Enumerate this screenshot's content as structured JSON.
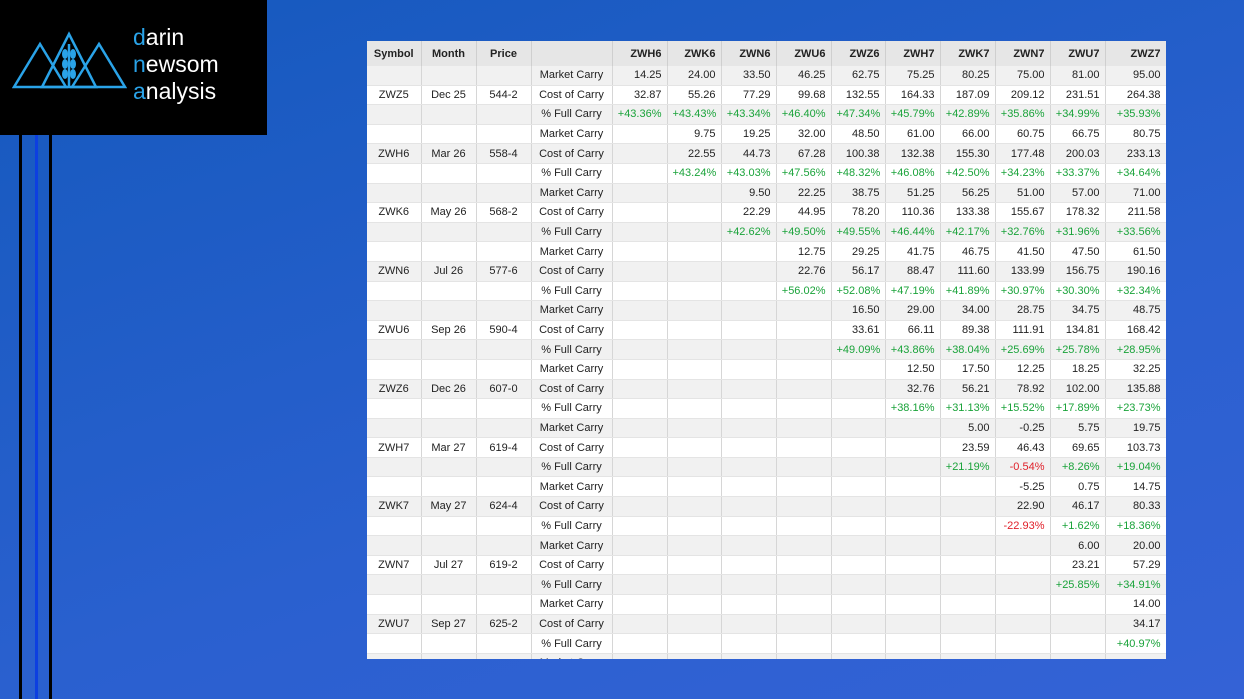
{
  "logo": {
    "lines": [
      "darin",
      "newsom",
      "analysis"
    ]
  },
  "table": {
    "header": [
      "Symbol",
      "Month",
      "Price",
      null,
      "ZWH6",
      "ZWK6",
      "ZWN6",
      "ZWU6",
      "ZWZ6",
      "ZWH7",
      "ZWK7",
      "ZWN7",
      "ZWU7",
      "ZWZ7"
    ],
    "groups": [
      {
        "symbol": "ZWZ5",
        "month": "Dec 25",
        "price": "544-2",
        "rows": [
          {
            "label": "Market Carry",
            "values": [
              "14.25",
              "24.00",
              "33.50",
              "46.25",
              "62.75",
              "75.25",
              "80.25",
              "75.00",
              "81.00",
              "95.00"
            ]
          },
          {
            "label": "Cost of Carry",
            "values": [
              "32.87",
              "55.26",
              "77.29",
              "99.68",
              "132.55",
              "164.33",
              "187.09",
              "209.12",
              "231.51",
              "264.38"
            ]
          },
          {
            "label": "% Full Carry",
            "values": [
              "+43.36%",
              "+43.43%",
              "+43.34%",
              "+46.40%",
              "+47.34%",
              "+45.79%",
              "+42.89%",
              "+35.86%",
              "+34.99%",
              "+35.93%"
            ]
          }
        ]
      },
      {
        "symbol": "ZWH6",
        "month": "Mar 26",
        "price": "558-4",
        "rows": [
          {
            "label": "Market Carry",
            "values": [
              "9.75",
              "19.25",
              "32.00",
              "48.50",
              "61.00",
              "66.00",
              "60.75",
              "66.75",
              "80.75"
            ]
          },
          {
            "label": "Cost of Carry",
            "values": [
              "22.55",
              "44.73",
              "67.28",
              "100.38",
              "132.38",
              "155.30",
              "177.48",
              "200.03",
              "233.13"
            ]
          },
          {
            "label": "% Full Carry",
            "values": [
              "+43.24%",
              "+43.03%",
              "+47.56%",
              "+48.32%",
              "+46.08%",
              "+42.50%",
              "+34.23%",
              "+33.37%",
              "+34.64%"
            ]
          }
        ]
      },
      {
        "symbol": "ZWK6",
        "month": "May 26",
        "price": "568-2",
        "rows": [
          {
            "label": "Market Carry",
            "values": [
              "9.50",
              "22.25",
              "38.75",
              "51.25",
              "56.25",
              "51.00",
              "57.00",
              "71.00"
            ]
          },
          {
            "label": "Cost of Carry",
            "values": [
              "22.29",
              "44.95",
              "78.20",
              "110.36",
              "133.38",
              "155.67",
              "178.32",
              "211.58"
            ]
          },
          {
            "label": "% Full Carry",
            "values": [
              "+42.62%",
              "+49.50%",
              "+49.55%",
              "+46.44%",
              "+42.17%",
              "+32.76%",
              "+31.96%",
              "+33.56%"
            ]
          }
        ]
      },
      {
        "symbol": "ZWN6",
        "month": "Jul 26",
        "price": "577-6",
        "rows": [
          {
            "label": "Market Carry",
            "values": [
              "12.75",
              "29.25",
              "41.75",
              "46.75",
              "41.50",
              "47.50",
              "61.50"
            ]
          },
          {
            "label": "Cost of Carry",
            "values": [
              "22.76",
              "56.17",
              "88.47",
              "111.60",
              "133.99",
              "156.75",
              "190.16"
            ]
          },
          {
            "label": "% Full Carry",
            "values": [
              "+56.02%",
              "+52.08%",
              "+47.19%",
              "+41.89%",
              "+30.97%",
              "+30.30%",
              "+32.34%"
            ]
          }
        ]
      },
      {
        "symbol": "ZWU6",
        "month": "Sep 26",
        "price": "590-4",
        "rows": [
          {
            "label": "Market Carry",
            "values": [
              "16.50",
              "29.00",
              "34.00",
              "28.75",
              "34.75",
              "48.75"
            ]
          },
          {
            "label": "Cost of Carry",
            "values": [
              "33.61",
              "66.11",
              "89.38",
              "111.91",
              "134.81",
              "168.42"
            ]
          },
          {
            "label": "% Full Carry",
            "values": [
              "+49.09%",
              "+43.86%",
              "+38.04%",
              "+25.69%",
              "+25.78%",
              "+28.95%"
            ]
          }
        ]
      },
      {
        "symbol": "ZWZ6",
        "month": "Dec 26",
        "price": "607-0",
        "rows": [
          {
            "label": "Market Carry",
            "values": [
              "12.50",
              "17.50",
              "12.25",
              "18.25",
              "32.25"
            ]
          },
          {
            "label": "Cost of Carry",
            "values": [
              "32.76",
              "56.21",
              "78.92",
              "102.00",
              "135.88"
            ]
          },
          {
            "label": "% Full Carry",
            "values": [
              "+38.16%",
              "+31.13%",
              "+15.52%",
              "+17.89%",
              "+23.73%"
            ]
          }
        ]
      },
      {
        "symbol": "ZWH7",
        "month": "Mar 27",
        "price": "619-4",
        "rows": [
          {
            "label": "Market Carry",
            "values": [
              "5.00",
              "-0.25",
              "5.75",
              "19.75"
            ]
          },
          {
            "label": "Cost of Carry",
            "values": [
              "23.59",
              "46.43",
              "69.65",
              "103.73"
            ]
          },
          {
            "label": "% Full Carry",
            "values": [
              "+21.19%",
              "-0.54%",
              "+8.26%",
              "+19.04%"
            ]
          }
        ]
      },
      {
        "symbol": "ZWK7",
        "month": "May 27",
        "price": "624-4",
        "rows": [
          {
            "label": "Market Carry",
            "values": [
              "-5.25",
              "0.75",
              "14.75"
            ]
          },
          {
            "label": "Cost of Carry",
            "values": [
              "22.90",
              "46.17",
              "80.33"
            ]
          },
          {
            "label": "% Full Carry",
            "values": [
              "-22.93%",
              "+1.62%",
              "+18.36%"
            ]
          }
        ]
      },
      {
        "symbol": "ZWN7",
        "month": "Jul 27",
        "price": "619-2",
        "rows": [
          {
            "label": "Market Carry",
            "values": [
              "6.00",
              "20.00"
            ]
          },
          {
            "label": "Cost of Carry",
            "values": [
              "23.21",
              "57.29"
            ]
          },
          {
            "label": "% Full Carry",
            "values": [
              "+25.85%",
              "+34.91%"
            ]
          }
        ]
      },
      {
        "symbol": "ZWU7",
        "month": "Sep 27",
        "price": "625-2",
        "rows": [
          {
            "label": "Market Carry",
            "values": [
              "14.00"
            ]
          },
          {
            "label": "Cost of Carry",
            "values": [
              "34.17"
            ]
          },
          {
            "label": "% Full Carry",
            "values": [
              "+40.97%"
            ]
          }
        ]
      },
      {
        "rows": [
          {
            "label": "Market Carry"
          }
        ]
      }
    ]
  }
}
